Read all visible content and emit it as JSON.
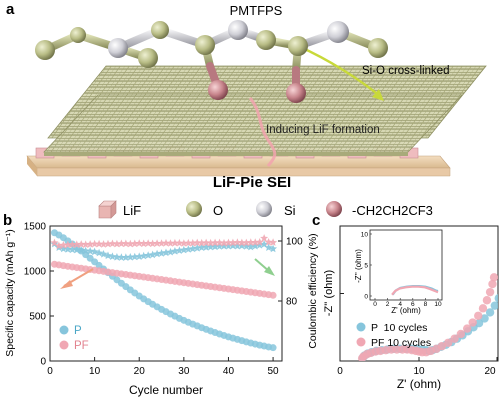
{
  "panels": {
    "a": {
      "label": "a",
      "molecule_title": "PMTFPS",
      "annotation_si_o": "Si-O cross-linked",
      "annotation_lif": "Inducing LiF formation",
      "sei_title": "LiF-Pie SEI",
      "legend": [
        {
          "icon": "lif-cube-icon",
          "text": "LiF",
          "color": "#e9b5b2"
        },
        {
          "icon": "o-atom-icon",
          "text": "O",
          "color": "#c9cc9c"
        },
        {
          "icon": "si-atom-icon",
          "text": "Si",
          "color": "#d7d7dc"
        },
        {
          "icon": "side-chain-atom-icon",
          "text": "-CH2CH2CF3",
          "color": "#c98088"
        }
      ]
    },
    "b": {
      "label": "b",
      "xlabel": "Cycle number",
      "ylabel_left": "Specific capacity (mAh g⁻¹)",
      "ylabel_right": "Coulombic efficiency (%)"
    },
    "c": {
      "label": "c",
      "xlabel": "Z' (ohm)",
      "ylabel": "-Z'' (ohm)",
      "inset_xlabel": "Z' (ohm)",
      "inset_ylabel": "-Z'' (ohm)"
    }
  },
  "chart_data": [
    {
      "type": "scatter",
      "panel": "b",
      "xlabel": "Cycle number",
      "ylabel": "Specific capacity (mAh g⁻¹)",
      "y2label": "Coulombic efficiency (%)",
      "xlim": [
        0,
        52
      ],
      "ylim": [
        0,
        1500
      ],
      "y2lim": [
        60,
        105
      ],
      "xticks": [
        0,
        10,
        20,
        30,
        40,
        50
      ],
      "yticks": [
        0,
        500,
        1000,
        1500
      ],
      "y2ticks": [
        80,
        100
      ],
      "legend": [
        {
          "name": "P",
          "color": "#86c5dc"
        },
        {
          "name": "PF",
          "color": "#f0a7b3"
        }
      ],
      "series": [
        {
          "name": "P",
          "kind": "capacity",
          "axis": "left",
          "color": "#86c5dc",
          "x": [
            1,
            2,
            3,
            4,
            5,
            6,
            7,
            8,
            9,
            10,
            11,
            12,
            13,
            14,
            15,
            16,
            17,
            18,
            19,
            20,
            21,
            22,
            23,
            24,
            25,
            26,
            27,
            28,
            29,
            30,
            31,
            32,
            33,
            34,
            35,
            36,
            37,
            38,
            39,
            40,
            41,
            42,
            43,
            44,
            45,
            46,
            47,
            48,
            49,
            50
          ],
          "y": [
            1425,
            1400,
            1370,
            1335,
            1300,
            1262,
            1222,
            1182,
            1142,
            1102,
            1062,
            1022,
            982,
            942,
            902,
            864,
            826,
            790,
            756,
            722,
            690,
            660,
            630,
            602,
            574,
            548,
            522,
            498,
            474,
            452,
            430,
            410,
            390,
            370,
            352,
            334,
            316,
            300,
            284,
            268,
            254,
            240,
            226,
            212,
            200,
            188,
            176,
            166,
            156,
            148
          ]
        },
        {
          "name": "PF",
          "kind": "capacity",
          "axis": "left",
          "color": "#f0a7b3",
          "x": [
            1,
            2,
            3,
            4,
            5,
            6,
            7,
            8,
            9,
            10,
            11,
            12,
            13,
            14,
            15,
            16,
            17,
            18,
            19,
            20,
            21,
            22,
            23,
            24,
            25,
            26,
            27,
            28,
            29,
            30,
            31,
            32,
            33,
            34,
            35,
            36,
            37,
            38,
            39,
            40,
            41,
            42,
            43,
            44,
            45,
            46,
            47,
            48,
            49,
            50
          ],
          "y": [
            1075,
            1068,
            1060,
            1052,
            1045,
            1038,
            1031,
            1024,
            1017,
            1010,
            1003,
            996,
            989,
            982,
            975,
            968,
            961,
            954,
            947,
            940,
            933,
            926,
            919,
            912,
            905,
            898,
            891,
            884,
            877,
            870,
            863,
            856,
            849,
            842,
            835,
            828,
            821,
            814,
            807,
            800,
            793,
            786,
            779,
            772,
            765,
            758,
            751,
            744,
            737,
            730
          ]
        },
        {
          "name": "P",
          "kind": "efficiency",
          "axis": "right",
          "color": "#86c5dc",
          "x": [
            1,
            2,
            3,
            4,
            5,
            6,
            7,
            8,
            9,
            10,
            11,
            12,
            13,
            14,
            15,
            16,
            17,
            18,
            19,
            20,
            21,
            22,
            23,
            24,
            25,
            26,
            27,
            28,
            29,
            30,
            31,
            32,
            33,
            34,
            35,
            36,
            37,
            38,
            39,
            40,
            41,
            42,
            43,
            44,
            45,
            46,
            47,
            48,
            49,
            50
          ],
          "y": [
            99.0,
            97.8,
            97.4,
            97.2,
            97.1,
            97.0,
            96.9,
            96.7,
            96.6,
            96.4,
            96.0,
            95.6,
            95.1,
            94.8,
            94.6,
            94.5,
            94.5,
            94.6,
            94.7,
            94.8,
            95.0,
            95.2,
            95.4,
            95.7,
            95.9,
            96.1,
            96.3,
            96.6,
            96.8,
            97.0,
            97.2,
            97.4,
            97.6,
            97.8,
            97.9,
            98.0,
            98.1,
            98.2,
            98.3,
            98.3,
            98.4,
            98.3,
            98.4,
            98.2,
            98.0,
            98.3,
            98.6,
            98.9,
            97.8,
            97.4
          ]
        },
        {
          "name": "PF",
          "kind": "efficiency",
          "axis": "right",
          "color": "#f0a7b3",
          "x": [
            1,
            2,
            3,
            4,
            5,
            6,
            7,
            8,
            9,
            10,
            11,
            12,
            13,
            14,
            15,
            16,
            17,
            18,
            19,
            20,
            21,
            22,
            23,
            24,
            25,
            26,
            27,
            28,
            29,
            30,
            31,
            32,
            33,
            34,
            35,
            36,
            37,
            38,
            39,
            40,
            41,
            42,
            43,
            44,
            45,
            46,
            47,
            48,
            49,
            50
          ],
          "y": [
            99.4,
            98.4,
            98.6,
            98.7,
            98.8,
            98.8,
            98.9,
            98.8,
            98.9,
            99.0,
            99.0,
            98.9,
            99.0,
            99.1,
            99.0,
            99.1,
            99.1,
            99.0,
            99.1,
            99.2,
            99.1,
            99.2,
            99.1,
            99.2,
            99.2,
            99.3,
            99.2,
            99.3,
            99.3,
            99.2,
            99.3,
            99.3,
            99.4,
            99.3,
            99.4,
            99.3,
            99.4,
            99.4,
            99.3,
            99.4,
            99.4,
            99.5,
            99.4,
            99.4,
            99.5,
            99.5,
            99.6,
            100.9,
            99.6,
            99.5
          ]
        }
      ]
    },
    {
      "type": "scatter",
      "panel": "c",
      "xlabel": "Z' (ohm)",
      "ylabel": "-Z'' (ohm)",
      "xlim": [
        0,
        20
      ],
      "ylim": [
        0,
        20
      ],
      "xticks": [
        0,
        10,
        20
      ],
      "yticks": [
        0,
        10,
        20
      ],
      "legend": [
        {
          "name": "P  10 cycles",
          "color": "#86c5dc"
        },
        {
          "name": "PF 10 cycles",
          "color": "#f0a7b3"
        }
      ],
      "series": [
        {
          "name": "P  10 cycles",
          "color": "#86c5dc",
          "x": [
            2.9,
            3.1,
            3.5,
            4.0,
            4.6,
            5.3,
            6.0,
            6.8,
            7.6,
            8.4,
            9.1,
            9.8,
            10.4,
            10.9,
            11.3,
            11.7,
            12.2,
            12.8,
            13.4,
            14.1,
            14.8,
            15.5,
            16.2,
            16.9,
            17.6,
            18.3,
            19.0,
            19.6,
            20.1
          ],
          "y": [
            0.5,
            0.8,
            1.1,
            1.3,
            1.5,
            1.6,
            1.7,
            1.8,
            1.8,
            1.8,
            1.8,
            1.8,
            1.7,
            1.6,
            1.5,
            1.6,
            1.8,
            2.1,
            2.4,
            2.8,
            3.3,
            3.8,
            4.4,
            5.0,
            5.6,
            6.3,
            7.2,
            8.2,
            9.3
          ]
        },
        {
          "name": "PF 10 cycles",
          "color": "#f0a7b3",
          "x": [
            2.8,
            3.0,
            3.4,
            3.9,
            4.5,
            5.1,
            5.8,
            6.5,
            7.2,
            7.9,
            8.5,
            9.1,
            9.6,
            10.0,
            10.4,
            10.9,
            11.5,
            12.2,
            12.9,
            13.7,
            14.5,
            15.3,
            16.1,
            16.8,
            17.5,
            18.1,
            18.6,
            19.0,
            19.3,
            19.5
          ],
          "y": [
            0.4,
            0.7,
            1.0,
            1.2,
            1.4,
            1.5,
            1.6,
            1.7,
            1.7,
            1.7,
            1.7,
            1.6,
            1.5,
            1.4,
            1.3,
            1.3,
            1.5,
            1.8,
            2.2,
            2.7,
            3.3,
            4.0,
            4.8,
            5.7,
            6.7,
            7.8,
            9.0,
            10.2,
            11.4,
            12.4
          ]
        }
      ]
    },
    {
      "type": "line",
      "panel": "c-inset",
      "xlabel": "Z' (ohm)",
      "ylabel": "-Z'' (ohm)",
      "xlim": [
        0,
        10
      ],
      "ylim": [
        0,
        10
      ],
      "xticks": [
        0,
        2,
        4,
        6,
        8,
        10
      ],
      "yticks": [
        0,
        5,
        10
      ],
      "series": [
        {
          "name": "P",
          "color": "#86c5dc",
          "x": [
            2.8,
            3.3,
            4.0,
            5.0,
            6.0,
            7.0,
            8.0,
            9.0,
            9.6,
            10.0
          ],
          "y": [
            0.2,
            0.9,
            1.3,
            1.5,
            1.6,
            1.6,
            1.5,
            1.2,
            0.9,
            0.8
          ]
        },
        {
          "name": "PF",
          "color": "#f0a7b3",
          "x": [
            2.7,
            3.2,
            3.9,
            4.9,
            5.9,
            6.9,
            7.9,
            8.8,
            9.5,
            10.0
          ],
          "y": [
            0.2,
            0.8,
            1.2,
            1.4,
            1.5,
            1.5,
            1.4,
            1.1,
            0.8,
            0.6
          ]
        }
      ]
    }
  ]
}
